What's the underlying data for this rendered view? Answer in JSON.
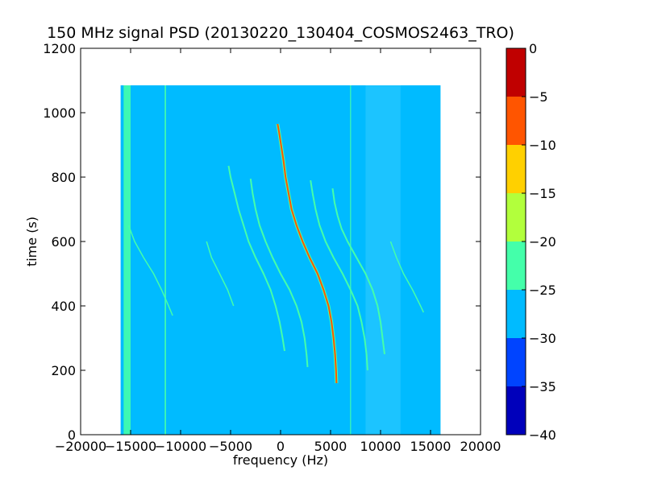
{
  "chart_data": {
    "type": "heatmap",
    "title": "150 MHz signal PSD (20130220_130404_COSMOS2463_TRO)",
    "xlabel": "frequency (Hz)",
    "ylabel": "time (s)",
    "xlim": [
      -20000,
      20000
    ],
    "ylim": [
      0,
      1200
    ],
    "x_ticks": [
      -20000,
      -15000,
      -10000,
      -5000,
      0,
      5000,
      10000,
      15000,
      20000
    ],
    "x_tick_labels": [
      "−20000",
      "−15000",
      "−10000",
      "−5000",
      "0",
      "5000",
      "10000",
      "15000",
      "20000"
    ],
    "y_ticks": [
      0,
      200,
      400,
      600,
      800,
      1000,
      1200
    ],
    "y_tick_labels": [
      "0",
      "200",
      "400",
      "600",
      "800",
      "1000",
      "1200"
    ],
    "data_extent": {
      "freq_min": -16000,
      "freq_max": 16000,
      "time_min": 0,
      "time_max": 1085
    },
    "background_level": -27.5,
    "colorbar": {
      "levels": [
        -40,
        -35,
        -30,
        -25,
        -20,
        -15,
        -10,
        -5,
        0
      ],
      "tick_labels": [
        "−40",
        "−35",
        "−30",
        "−25",
        "−20",
        "−15",
        "−10",
        "−5",
        "0"
      ],
      "colors": [
        "#0000bb",
        "#0044ff",
        "#00bbff",
        "#44ffaa",
        "#b2ff3c",
        "#ffd000",
        "#ff5500",
        "#c00000"
      ]
    },
    "band_features": [
      {
        "name": "left edge band",
        "freq_min": -15700,
        "freq_max": -15000,
        "time_min": 0,
        "time_max": 1085,
        "level": -22.5
      },
      {
        "name": "line at -11500 Hz",
        "freq_min": -11600,
        "freq_max": -11450,
        "time_min": 0,
        "time_max": 1085,
        "level": -25
      },
      {
        "name": "line at 7000 Hz",
        "freq_min": 6950,
        "freq_max": 7050,
        "time_min": 0,
        "time_max": 1085,
        "level": -25
      },
      {
        "name": "lighter region",
        "freq_min": 8500,
        "freq_max": 12000,
        "time_min": 0,
        "time_max": 1085,
        "level": -26.5
      }
    ],
    "traces": [
      {
        "name": "main",
        "level": -10,
        "t": [
          965,
          940,
          900,
          850,
          800,
          750,
          700,
          650,
          600,
          550,
          500,
          450,
          400,
          350,
          300,
          250,
          200,
          160
        ],
        "f": [
          -300,
          -150,
          50,
          300,
          500,
          800,
          1100,
          1600,
          2200,
          2900,
          3700,
          4300,
          4800,
          5100,
          5300,
          5450,
          5550,
          5600
        ]
      },
      {
        "name": "left strong",
        "level": -22.5,
        "t": [
          835,
          800,
          750,
          700,
          650,
          600,
          550,
          500,
          450,
          400,
          350,
          300,
          260
        ],
        "f": [
          -5200,
          -5000,
          -4600,
          -4200,
          -3700,
          -3200,
          -2500,
          -1700,
          -1000,
          -500,
          -100,
          200,
          400
        ]
      },
      {
        "name": "left second",
        "level": -22.5,
        "t": [
          795,
          750,
          700,
          650,
          600,
          550,
          500,
          450,
          400,
          350,
          300,
          250,
          210
        ],
        "f": [
          -3000,
          -2800,
          -2500,
          -2100,
          -1500,
          -800,
          0,
          900,
          1600,
          2100,
          2400,
          2600,
          2700
        ]
      },
      {
        "name": "right first",
        "level": -22.5,
        "t": [
          790,
          750,
          700,
          650,
          600,
          550,
          500,
          450,
          400,
          350,
          300,
          250,
          200
        ],
        "f": [
          3000,
          3200,
          3500,
          3900,
          4500,
          5300,
          6200,
          7000,
          7700,
          8100,
          8400,
          8600,
          8700
        ]
      },
      {
        "name": "right second",
        "level": -22.5,
        "t": [
          765,
          720,
          680,
          640,
          600,
          550,
          500,
          450,
          400,
          350,
          300,
          250
        ],
        "f": [
          5200,
          5400,
          5700,
          6100,
          6700,
          7600,
          8500,
          9200,
          9700,
          10000,
          10200,
          10400
        ]
      },
      {
        "name": "faint -13000",
        "level": -25,
        "t": [
          650,
          600,
          550,
          500,
          450,
          400,
          370
        ],
        "f": [
          -15200,
          -14600,
          -13700,
          -12700,
          -11900,
          -11200,
          -10800
        ]
      },
      {
        "name": "faint -7000",
        "level": -25,
        "t": [
          600,
          550,
          500,
          450,
          400
        ],
        "f": [
          -7400,
          -6900,
          -6100,
          -5300,
          -4700
        ]
      },
      {
        "name": "faint 11000",
        "level": -25,
        "t": [
          600,
          550,
          500,
          450,
          400,
          380
        ],
        "f": [
          11000,
          11600,
          12300,
          13200,
          14000,
          14300
        ]
      }
    ]
  }
}
